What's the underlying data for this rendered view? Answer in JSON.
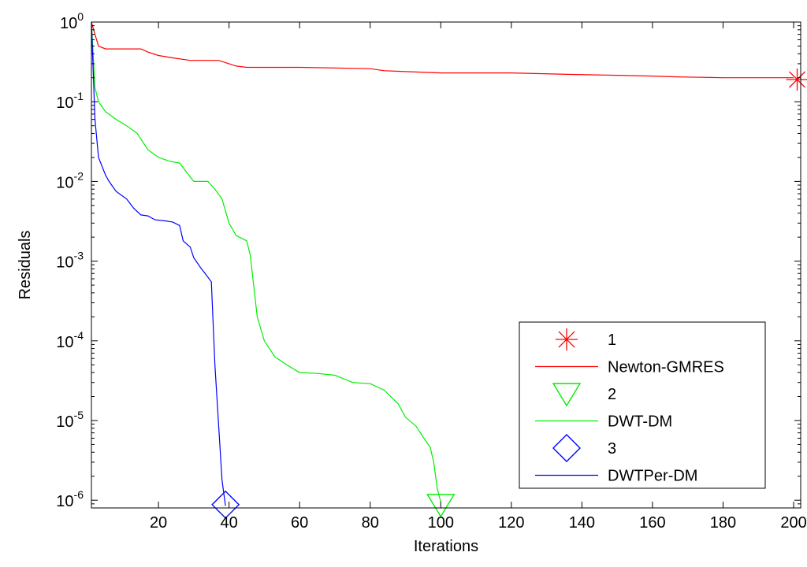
{
  "chart_data": {
    "type": "line",
    "xlabel": "Iterations",
    "ylabel": "Residuals",
    "xscale": "linear",
    "yscale": "log",
    "xlim": [
      1,
      202
    ],
    "ylim": [
      8e-07,
      1
    ],
    "grid": false,
    "legend_position": "bottom-right",
    "x_ticks": [
      20,
      40,
      60,
      80,
      100,
      120,
      140,
      160,
      180,
      200
    ],
    "x_tick_labels": [
      "20",
      "40",
      "60",
      "80",
      "100",
      "120",
      "140",
      "160",
      "180",
      "200"
    ],
    "y_ticks": [
      1,
      0.1,
      0.01,
      0.001,
      0.0001,
      1e-05,
      1e-06
    ],
    "y_tick_labels": [
      {
        "base": "10",
        "exp": "0"
      },
      {
        "base": "10",
        "exp": "-1"
      },
      {
        "base": "10",
        "exp": "-2"
      },
      {
        "base": "10",
        "exp": "-3"
      },
      {
        "base": "10",
        "exp": "-4"
      },
      {
        "base": "10",
        "exp": "-5"
      },
      {
        "base": "10",
        "exp": "-6"
      }
    ],
    "series": [
      {
        "name": "Newton-GMRES",
        "color": "#ff0000",
        "x": [
          1,
          2,
          3,
          5,
          15,
          17,
          20,
          25,
          29,
          37,
          40,
          42,
          45,
          60,
          80,
          84,
          100,
          120,
          137,
          150,
          160,
          167,
          180,
          200
        ],
        "y": [
          1,
          0.7,
          0.5,
          0.46,
          0.46,
          0.42,
          0.38,
          0.35,
          0.33,
          0.33,
          0.3,
          0.28,
          0.27,
          0.27,
          0.26,
          0.245,
          0.23,
          0.23,
          0.22,
          0.215,
          0.21,
          0.205,
          0.2,
          0.2
        ]
      },
      {
        "name": "DWT-DM",
        "color": "#00ee00",
        "x": [
          1,
          2,
          3,
          5,
          8,
          11,
          14,
          17,
          20,
          23,
          26,
          30,
          34,
          36,
          38,
          40,
          42,
          45,
          46,
          48,
          50,
          53,
          56,
          60,
          65,
          70,
          75,
          80,
          84,
          88,
          90,
          93,
          95,
          97,
          98,
          99,
          100
        ],
        "y": [
          1,
          0.15,
          0.1,
          0.075,
          0.06,
          0.05,
          0.04,
          0.025,
          0.02,
          0.018,
          0.017,
          0.01,
          0.01,
          0.008,
          0.006,
          0.003,
          0.0021,
          0.0018,
          0.0012,
          0.0002,
          0.0001,
          6.3e-05,
          5.1e-05,
          4e-05,
          3.9e-05,
          3.7e-05,
          3e-05,
          2.9e-05,
          2.4e-05,
          1.6e-05,
          1.1e-05,
          8.5e-06,
          6.2e-06,
          4.6e-06,
          3e-06,
          1.4e-06,
          9.5e-07
        ]
      },
      {
        "name": "DWTPer-DM",
        "color": "#0000ff",
        "x": [
          1,
          2,
          3,
          5,
          6,
          8,
          11,
          13,
          15,
          17,
          19,
          22,
          24,
          26,
          27,
          29,
          30,
          32,
          33,
          35,
          36,
          38,
          39
        ],
        "y": [
          1,
          0.06,
          0.02,
          0.012,
          0.01,
          0.0075,
          0.006,
          0.0046,
          0.0038,
          0.0037,
          0.0033,
          0.0032,
          0.0031,
          0.0028,
          0.0018,
          0.0015,
          0.0011,
          0.00082,
          0.00072,
          0.00055,
          5e-05,
          1.8e-06,
          8.5e-07
        ]
      }
    ],
    "end_markers": [
      {
        "label": "1",
        "symbol": "asterisk",
        "color": "#ff0000",
        "x": 201,
        "y": 0.19
      },
      {
        "label": "2",
        "symbol": "triangle-down",
        "color": "#00ee00",
        "x": 100,
        "y": 8.8e-07
      },
      {
        "label": "3",
        "symbol": "diamond",
        "color": "#0000ff",
        "x": 39,
        "y": 8.8e-07
      }
    ],
    "legend": [
      {
        "kind": "marker",
        "symbol": "asterisk",
        "color": "#ff0000",
        "label": "1"
      },
      {
        "kind": "line",
        "color": "#ff0000",
        "label": "Newton-GMRES"
      },
      {
        "kind": "marker",
        "symbol": "triangle-down",
        "color": "#00ee00",
        "label": "2"
      },
      {
        "kind": "line",
        "color": "#00ee00",
        "label": "DWT-DM"
      },
      {
        "kind": "marker",
        "symbol": "diamond",
        "color": "#0000ff",
        "label": "3"
      },
      {
        "kind": "line",
        "color": "#0000ff",
        "label": "DWTPer-DM"
      }
    ]
  }
}
